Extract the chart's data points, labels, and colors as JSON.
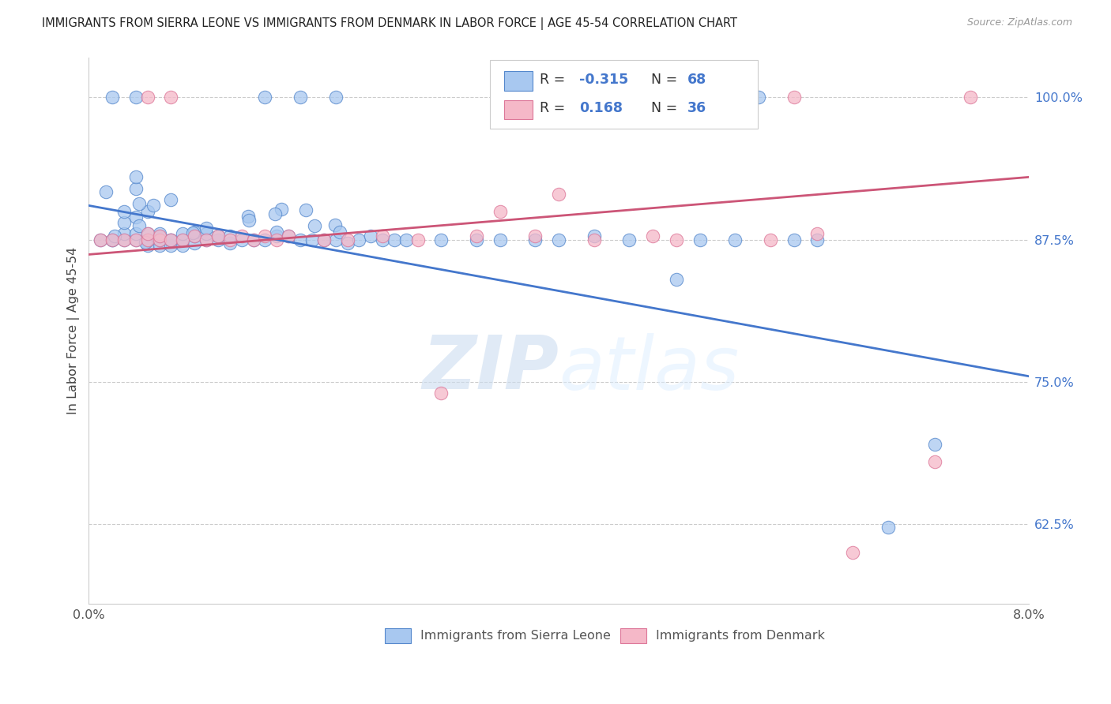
{
  "title": "IMMIGRANTS FROM SIERRA LEONE VS IMMIGRANTS FROM DENMARK IN LABOR FORCE | AGE 45-54 CORRELATION CHART",
  "source": "Source: ZipAtlas.com",
  "xlabel_blue": "Immigrants from Sierra Leone",
  "xlabel_pink": "Immigrants from Denmark",
  "ylabel": "In Labor Force | Age 45-54",
  "xlim": [
    0.0,
    0.08
  ],
  "ylim": [
    0.555,
    1.035
  ],
  "yticks": [
    0.625,
    0.75,
    0.875,
    1.0
  ],
  "ytick_labels": [
    "62.5%",
    "75.0%",
    "87.5%",
    "100.0%"
  ],
  "xticks": [
    0.0,
    0.01,
    0.02,
    0.03,
    0.04,
    0.05,
    0.06,
    0.07,
    0.08
  ],
  "xtick_labels": [
    "0.0%",
    "",
    "",
    "",
    "",
    "",
    "",
    "",
    "8.0%"
  ],
  "R_blue": -0.315,
  "N_blue": 68,
  "R_pink": 0.168,
  "N_pink": 36,
  "color_blue": "#a8c8f0",
  "color_pink": "#f5b8c8",
  "edge_blue": "#5588cc",
  "edge_pink": "#dd7799",
  "line_color_blue": "#4477cc",
  "line_color_pink": "#cc5577",
  "text_color_blue": "#4477cc",
  "text_color_pink": "#cc5577",
  "blue_line_y0": 0.905,
  "blue_line_y1": 0.755,
  "pink_line_y0": 0.862,
  "pink_line_y1": 0.93,
  "blue_x": [
    0.001,
    0.002,
    0.002,
    0.003,
    0.003,
    0.003,
    0.003,
    0.004,
    0.004,
    0.004,
    0.004,
    0.004,
    0.005,
    0.005,
    0.005,
    0.005,
    0.005,
    0.006,
    0.006,
    0.006,
    0.006,
    0.007,
    0.007,
    0.007,
    0.007,
    0.008,
    0.008,
    0.008,
    0.009,
    0.009,
    0.009,
    0.01,
    0.01,
    0.01,
    0.011,
    0.011,
    0.012,
    0.012,
    0.013,
    0.014,
    0.015,
    0.016,
    0.016,
    0.017,
    0.018,
    0.019,
    0.02,
    0.021,
    0.022,
    0.023,
    0.024,
    0.025,
    0.026,
    0.027,
    0.03,
    0.033,
    0.035,
    0.038,
    0.04,
    0.043,
    0.046,
    0.05,
    0.052,
    0.055,
    0.06,
    0.062,
    0.068,
    0.072
  ],
  "blue_y": [
    0.875,
    0.875,
    0.875,
    0.875,
    0.88,
    0.89,
    0.9,
    0.875,
    0.88,
    0.895,
    0.92,
    0.93,
    0.87,
    0.875,
    0.875,
    0.88,
    0.9,
    0.87,
    0.875,
    0.878,
    0.88,
    0.87,
    0.875,
    0.875,
    0.91,
    0.87,
    0.875,
    0.88,
    0.872,
    0.878,
    0.882,
    0.875,
    0.88,
    0.885,
    0.875,
    0.878,
    0.872,
    0.878,
    0.875,
    0.875,
    0.875,
    0.878,
    0.882,
    0.878,
    0.875,
    0.875,
    0.875,
    0.875,
    0.872,
    0.875,
    0.878,
    0.875,
    0.875,
    0.875,
    0.875,
    0.875,
    0.875,
    0.875,
    0.875,
    0.878,
    0.875,
    0.84,
    0.875,
    0.875,
    0.875,
    0.875,
    0.622,
    0.695
  ],
  "pink_x": [
    0.001,
    0.002,
    0.003,
    0.004,
    0.005,
    0.005,
    0.006,
    0.006,
    0.007,
    0.008,
    0.009,
    0.01,
    0.011,
    0.012,
    0.013,
    0.014,
    0.015,
    0.016,
    0.017,
    0.02,
    0.022,
    0.025,
    0.028,
    0.03,
    0.033,
    0.035,
    0.038,
    0.04,
    0.043,
    0.048,
    0.05,
    0.058,
    0.062,
    0.065,
    0.072,
    0.075
  ],
  "pink_y": [
    0.875,
    0.875,
    0.875,
    0.875,
    0.875,
    0.88,
    0.875,
    0.878,
    0.875,
    0.875,
    0.878,
    0.875,
    0.878,
    0.875,
    0.878,
    0.875,
    0.878,
    0.875,
    0.878,
    0.875,
    0.875,
    0.878,
    0.875,
    0.74,
    0.878,
    0.9,
    0.878,
    0.915,
    0.875,
    0.878,
    0.875,
    0.875,
    0.88,
    0.6,
    0.68,
    1.0
  ],
  "watermark": "ZIPatlas"
}
